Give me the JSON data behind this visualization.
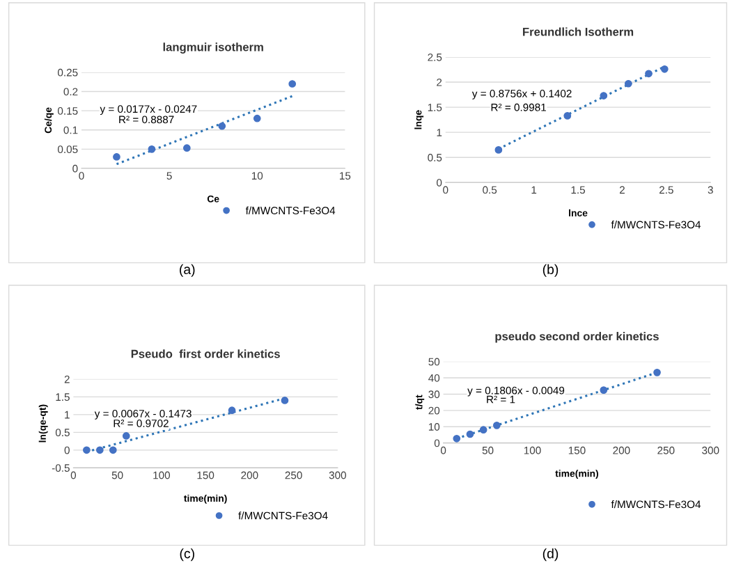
{
  "chart_data": [
    {
      "type": "scatter",
      "title": "langmuir isotherm",
      "xlabel": "Ce",
      "ylabel": "Ce/qe",
      "xlim": [
        0,
        15
      ],
      "xticks": [
        0,
        5,
        10,
        15
      ],
      "ylim": [
        0,
        0.25
      ],
      "yticks": [
        0,
        0.05,
        0.1,
        0.15,
        0.2,
        0.25
      ],
      "grid": "y",
      "legend": "bottom right",
      "series": [
        {
          "name": "f/MWCNTS-Fe3O4",
          "color": "#4472c4",
          "marker": "circle",
          "x": [
            2,
            4,
            6,
            8,
            10,
            12
          ],
          "values": [
            0.03,
            0.05,
            0.053,
            0.11,
            0.13,
            0.22
          ]
        },
        {
          "type": "line",
          "line_style": "dotted",
          "marker": "none",
          "color": "#2e75b6",
          "x": [
            2,
            12
          ],
          "values": [
            0.011,
            0.188
          ]
        }
      ],
      "annotations": [
        "y = 0.0177x - 0.0247",
        "R² = 0.8887",
        "(a)"
      ]
    },
    {
      "type": "scatter",
      "title": "Freundlich Isotherm",
      "xlabel": "lnce",
      "ylabel": "lnqe",
      "xlim": [
        0,
        3
      ],
      "xticks": [
        0,
        0.5,
        1,
        1.5,
        2,
        2.5,
        3
      ],
      "ylim": [
        0,
        2.5
      ],
      "yticks": [
        0,
        0.5,
        1,
        1.5,
        2,
        2.5
      ],
      "grid": "y",
      "legend": "bottom right",
      "series": [
        {
          "name": "f/MWCNTS-Fe3O4",
          "color": "#4472c4",
          "marker": "circle",
          "x": [
            0.6,
            1.38,
            1.79,
            2.07,
            2.3,
            2.48
          ],
          "values": [
            0.65,
            1.33,
            1.73,
            1.97,
            2.17,
            2.26
          ]
        },
        {
          "type": "line",
          "line_style": "dotted",
          "marker": "none",
          "color": "#2e75b6",
          "x": [
            0.6,
            2.48
          ],
          "values": [
            0.67,
            2.31
          ]
        }
      ],
      "annotations": [
        "y = 0.8756x + 0.1402",
        "R² = 0.9981",
        "(b)"
      ]
    },
    {
      "type": "scatter",
      "title": "Pseudo  first order kinetics",
      "xlabel": "time(min)",
      "ylabel": "ln(qe-qt)",
      "xlim": [
        0,
        300
      ],
      "xticks": [
        0,
        50,
        100,
        150,
        200,
        250,
        300
      ],
      "ylim": [
        -0.5,
        2
      ],
      "yticks": [
        -0.5,
        0,
        0.5,
        1,
        1.5,
        2
      ],
      "grid": "y",
      "legend": "bottom right",
      "series": [
        {
          "name": "f/MWCNTS-Fe3O4",
          "color": "#4472c4",
          "marker": "circle",
          "x": [
            15,
            30,
            45,
            60,
            180,
            240
          ],
          "values": [
            0,
            0,
            0,
            0.4,
            1.12,
            1.4
          ]
        },
        {
          "type": "line",
          "line_style": "dotted",
          "marker": "none",
          "color": "#2e75b6",
          "x": [
            15,
            240
          ],
          "values": [
            -0.05,
            1.46
          ]
        }
      ],
      "annotations": [
        "y = 0.0067x - 0.1473",
        "R² = 0.9702",
        "(c)"
      ]
    },
    {
      "type": "scatter",
      "title": "pseudo second order kinetics",
      "xlabel": "time(min)",
      "ylabel": "t/qt",
      "xlim": [
        0,
        300
      ],
      "xticks": [
        0,
        50,
        100,
        150,
        200,
        250,
        300
      ],
      "ylim": [
        0,
        50
      ],
      "yticks": [
        0,
        10,
        20,
        30,
        40,
        50
      ],
      "grid": "y",
      "legend": "bottom right",
      "series": [
        {
          "name": "f/MWCNTS-Fe3O4",
          "color": "#4472c4",
          "marker": "circle",
          "x": [
            15,
            30,
            45,
            60,
            180,
            240
          ],
          "values": [
            2.7,
            5.4,
            8.1,
            10.8,
            32.5,
            43.3
          ]
        },
        {
          "type": "line",
          "line_style": "dotted",
          "marker": "none",
          "color": "#2e75b6",
          "x": [
            15,
            240
          ],
          "values": [
            2.7,
            43.3
          ]
        }
      ],
      "annotations": [
        "y = 0.1806x - 0.0049",
        "R² = 1",
        "(d)"
      ]
    }
  ]
}
